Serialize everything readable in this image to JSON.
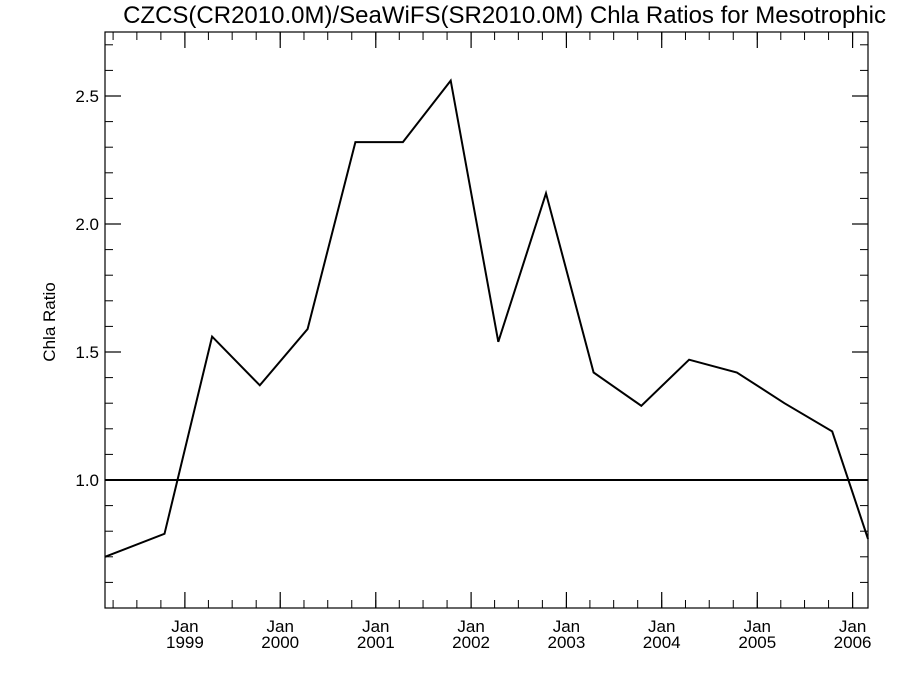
{
  "chart_data": {
    "type": "line",
    "title": "CZCS(CR2010.0M)/SeaWiFS(SR2010.0M)  Chla Ratios for Mesotrophic",
    "xlabel": "",
    "ylabel": "Chla Ratio",
    "xlim": [
      "1998-03-01",
      "2006-03-01"
    ],
    "ylim": [
      0.5,
      2.75
    ],
    "y_ticks": [
      1.0,
      1.5,
      2.0,
      2.5
    ],
    "y_tick_labels": [
      "1.0",
      "1.5",
      "2.0",
      "2.5"
    ],
    "x_ticks": [
      {
        "date": "1999-01-01",
        "month": "Jan",
        "year": "1999"
      },
      {
        "date": "2000-01-01",
        "month": "Jan",
        "year": "2000"
      },
      {
        "date": "2001-01-01",
        "month": "Jan",
        "year": "2001"
      },
      {
        "date": "2002-01-01",
        "month": "Jan",
        "year": "2002"
      },
      {
        "date": "2003-01-01",
        "month": "Jan",
        "year": "2003"
      },
      {
        "date": "2004-01-01",
        "month": "Jan",
        "year": "2004"
      },
      {
        "date": "2005-01-01",
        "month": "Jan",
        "year": "2005"
      },
      {
        "date": "2006-01-01",
        "month": "Jan",
        "year": "2006"
      }
    ],
    "reference_line": 1.0,
    "grid": false,
    "series": [
      {
        "x": [
          "1998-03-01",
          "1998-10-15",
          "1999-04-15",
          "1999-10-15",
          "2000-04-15",
          "2000-10-15",
          "2001-04-15",
          "2001-10-15",
          "2002-04-15",
          "2002-10-15",
          "2003-04-15",
          "2003-10-15",
          "2004-04-15",
          "2004-10-15",
          "2005-04-15",
          "2005-10-15",
          "2006-03-01"
        ],
        "y": [
          0.7,
          0.79,
          1.56,
          1.37,
          1.59,
          2.32,
          2.32,
          2.56,
          1.54,
          2.12,
          1.42,
          1.29,
          1.47,
          1.42,
          1.3,
          1.19,
          0.77
        ]
      }
    ]
  }
}
